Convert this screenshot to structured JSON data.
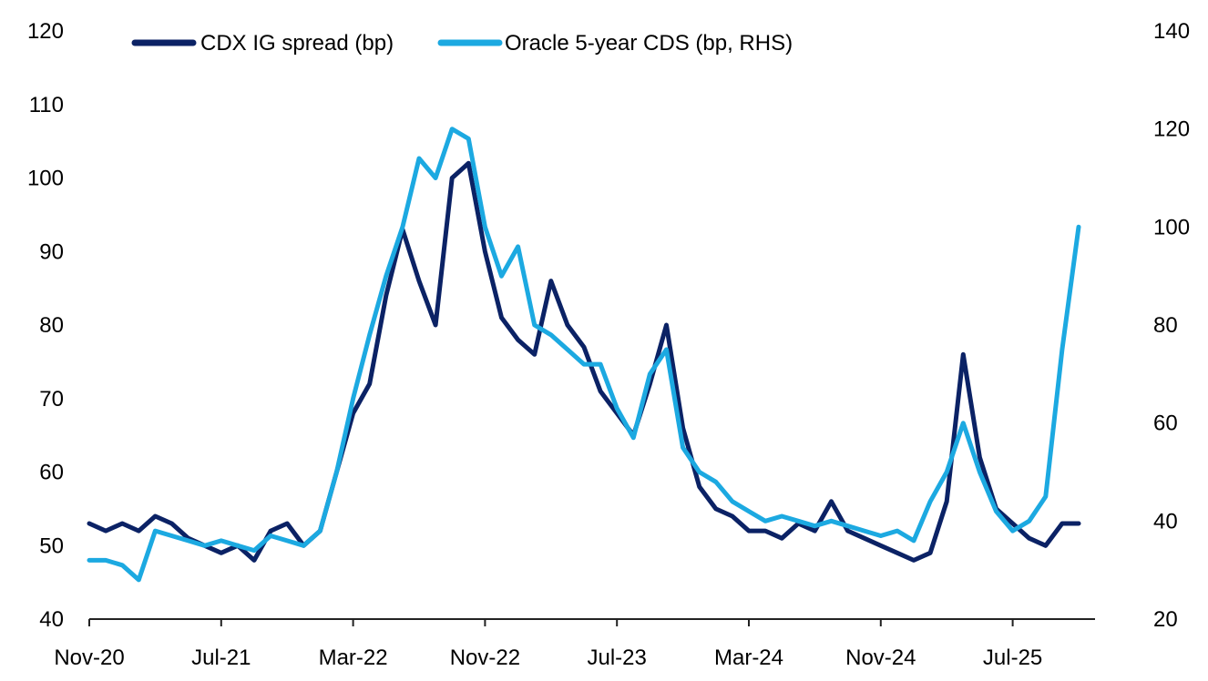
{
  "chart_data": {
    "type": "line",
    "title": "",
    "xlabel": "",
    "ylabel": "",
    "x_tick_labels": [
      "Nov-20",
      "Jul-21",
      "Mar-22",
      "Nov-22",
      "Jul-23",
      "Mar-24",
      "Nov-24",
      "Jul-25"
    ],
    "x_range": [
      "2020-11",
      "2025-11"
    ],
    "ylim_left": [
      40,
      120
    ],
    "yticks_left": [
      40,
      50,
      60,
      70,
      80,
      90,
      100,
      110,
      120
    ],
    "ylim_right": [
      20,
      140
    ],
    "yticks_right": [
      20,
      40,
      60,
      80,
      100,
      120,
      140
    ],
    "grid": false,
    "legend_position": "top",
    "series": [
      {
        "name": "CDX IG spread (bp)",
        "axis": "left",
        "color": "#0b2265",
        "points": [
          [
            "2020-11",
            53
          ],
          [
            "2020-12",
            52
          ],
          [
            "2021-01",
            53
          ],
          [
            "2021-02",
            52
          ],
          [
            "2021-03",
            54
          ],
          [
            "2021-04",
            53
          ],
          [
            "2021-05",
            51
          ],
          [
            "2021-06",
            50
          ],
          [
            "2021-07",
            49
          ],
          [
            "2021-08",
            50
          ],
          [
            "2021-09",
            48
          ],
          [
            "2021-10",
            52
          ],
          [
            "2021-11",
            53
          ],
          [
            "2021-12",
            50
          ],
          [
            "2022-01",
            52
          ],
          [
            "2022-02",
            60
          ],
          [
            "2022-03",
            68
          ],
          [
            "2022-04",
            72
          ],
          [
            "2022-05",
            84
          ],
          [
            "2022-06",
            93
          ],
          [
            "2022-07",
            86
          ],
          [
            "2022-08",
            80
          ],
          [
            "2022-09",
            100
          ],
          [
            "2022-10",
            102
          ],
          [
            "2022-11",
            90
          ],
          [
            "2022-12",
            81
          ],
          [
            "2023-01",
            78
          ],
          [
            "2023-02",
            76
          ],
          [
            "2023-03",
            86
          ],
          [
            "2023-04",
            80
          ],
          [
            "2023-05",
            77
          ],
          [
            "2023-06",
            71
          ],
          [
            "2023-07",
            68
          ],
          [
            "2023-08",
            65
          ],
          [
            "2023-09",
            72
          ],
          [
            "2023-10",
            80
          ],
          [
            "2023-11",
            66
          ],
          [
            "2023-12",
            58
          ],
          [
            "2024-01",
            55
          ],
          [
            "2024-02",
            54
          ],
          [
            "2024-03",
            52
          ],
          [
            "2024-04",
            52
          ],
          [
            "2024-05",
            51
          ],
          [
            "2024-06",
            53
          ],
          [
            "2024-07",
            52
          ],
          [
            "2024-08",
            56
          ],
          [
            "2024-09",
            52
          ],
          [
            "2024-10",
            51
          ],
          [
            "2024-11",
            50
          ],
          [
            "2024-12",
            49
          ],
          [
            "2025-01",
            48
          ],
          [
            "2025-02",
            49
          ],
          [
            "2025-03",
            56
          ],
          [
            "2025-04",
            76
          ],
          [
            "2025-05",
            62
          ],
          [
            "2025-06",
            55
          ],
          [
            "2025-07",
            53
          ],
          [
            "2025-08",
            51
          ],
          [
            "2025-09",
            50
          ],
          [
            "2025-10",
            53
          ],
          [
            "2025-11",
            53
          ]
        ]
      },
      {
        "name": "Oracle 5-year CDS (bp, RHS)",
        "axis": "right",
        "color": "#1ca9e1",
        "points": [
          [
            "2020-11",
            32
          ],
          [
            "2020-12",
            32
          ],
          [
            "2021-01",
            31
          ],
          [
            "2021-02",
            28
          ],
          [
            "2021-03",
            38
          ],
          [
            "2021-04",
            37
          ],
          [
            "2021-05",
            36
          ],
          [
            "2021-06",
            35
          ],
          [
            "2021-07",
            36
          ],
          [
            "2021-08",
            35
          ],
          [
            "2021-09",
            34
          ],
          [
            "2021-10",
            37
          ],
          [
            "2021-11",
            36
          ],
          [
            "2021-12",
            35
          ],
          [
            "2022-01",
            38
          ],
          [
            "2022-02",
            50
          ],
          [
            "2022-03",
            65
          ],
          [
            "2022-04",
            78
          ],
          [
            "2022-05",
            90
          ],
          [
            "2022-06",
            100
          ],
          [
            "2022-07",
            114
          ],
          [
            "2022-08",
            110
          ],
          [
            "2022-09",
            120
          ],
          [
            "2022-10",
            118
          ],
          [
            "2022-11",
            100
          ],
          [
            "2022-12",
            90
          ],
          [
            "2023-01",
            96
          ],
          [
            "2023-02",
            80
          ],
          [
            "2023-03",
            78
          ],
          [
            "2023-04",
            75
          ],
          [
            "2023-05",
            72
          ],
          [
            "2023-06",
            72
          ],
          [
            "2023-07",
            63
          ],
          [
            "2023-08",
            57
          ],
          [
            "2023-09",
            70
          ],
          [
            "2023-10",
            75
          ],
          [
            "2023-11",
            55
          ],
          [
            "2023-12",
            50
          ],
          [
            "2024-01",
            48
          ],
          [
            "2024-02",
            44
          ],
          [
            "2024-03",
            42
          ],
          [
            "2024-04",
            40
          ],
          [
            "2024-05",
            41
          ],
          [
            "2024-06",
            40
          ],
          [
            "2024-07",
            39
          ],
          [
            "2024-08",
            40
          ],
          [
            "2024-09",
            39
          ],
          [
            "2024-10",
            38
          ],
          [
            "2024-11",
            37
          ],
          [
            "2024-12",
            38
          ],
          [
            "2025-01",
            36
          ],
          [
            "2025-02",
            44
          ],
          [
            "2025-03",
            50
          ],
          [
            "2025-04",
            60
          ],
          [
            "2025-05",
            50
          ],
          [
            "2025-06",
            42
          ],
          [
            "2025-07",
            38
          ],
          [
            "2025-08",
            40
          ],
          [
            "2025-09",
            45
          ],
          [
            "2025-10",
            75
          ],
          [
            "2025-11",
            100
          ]
        ]
      }
    ]
  }
}
